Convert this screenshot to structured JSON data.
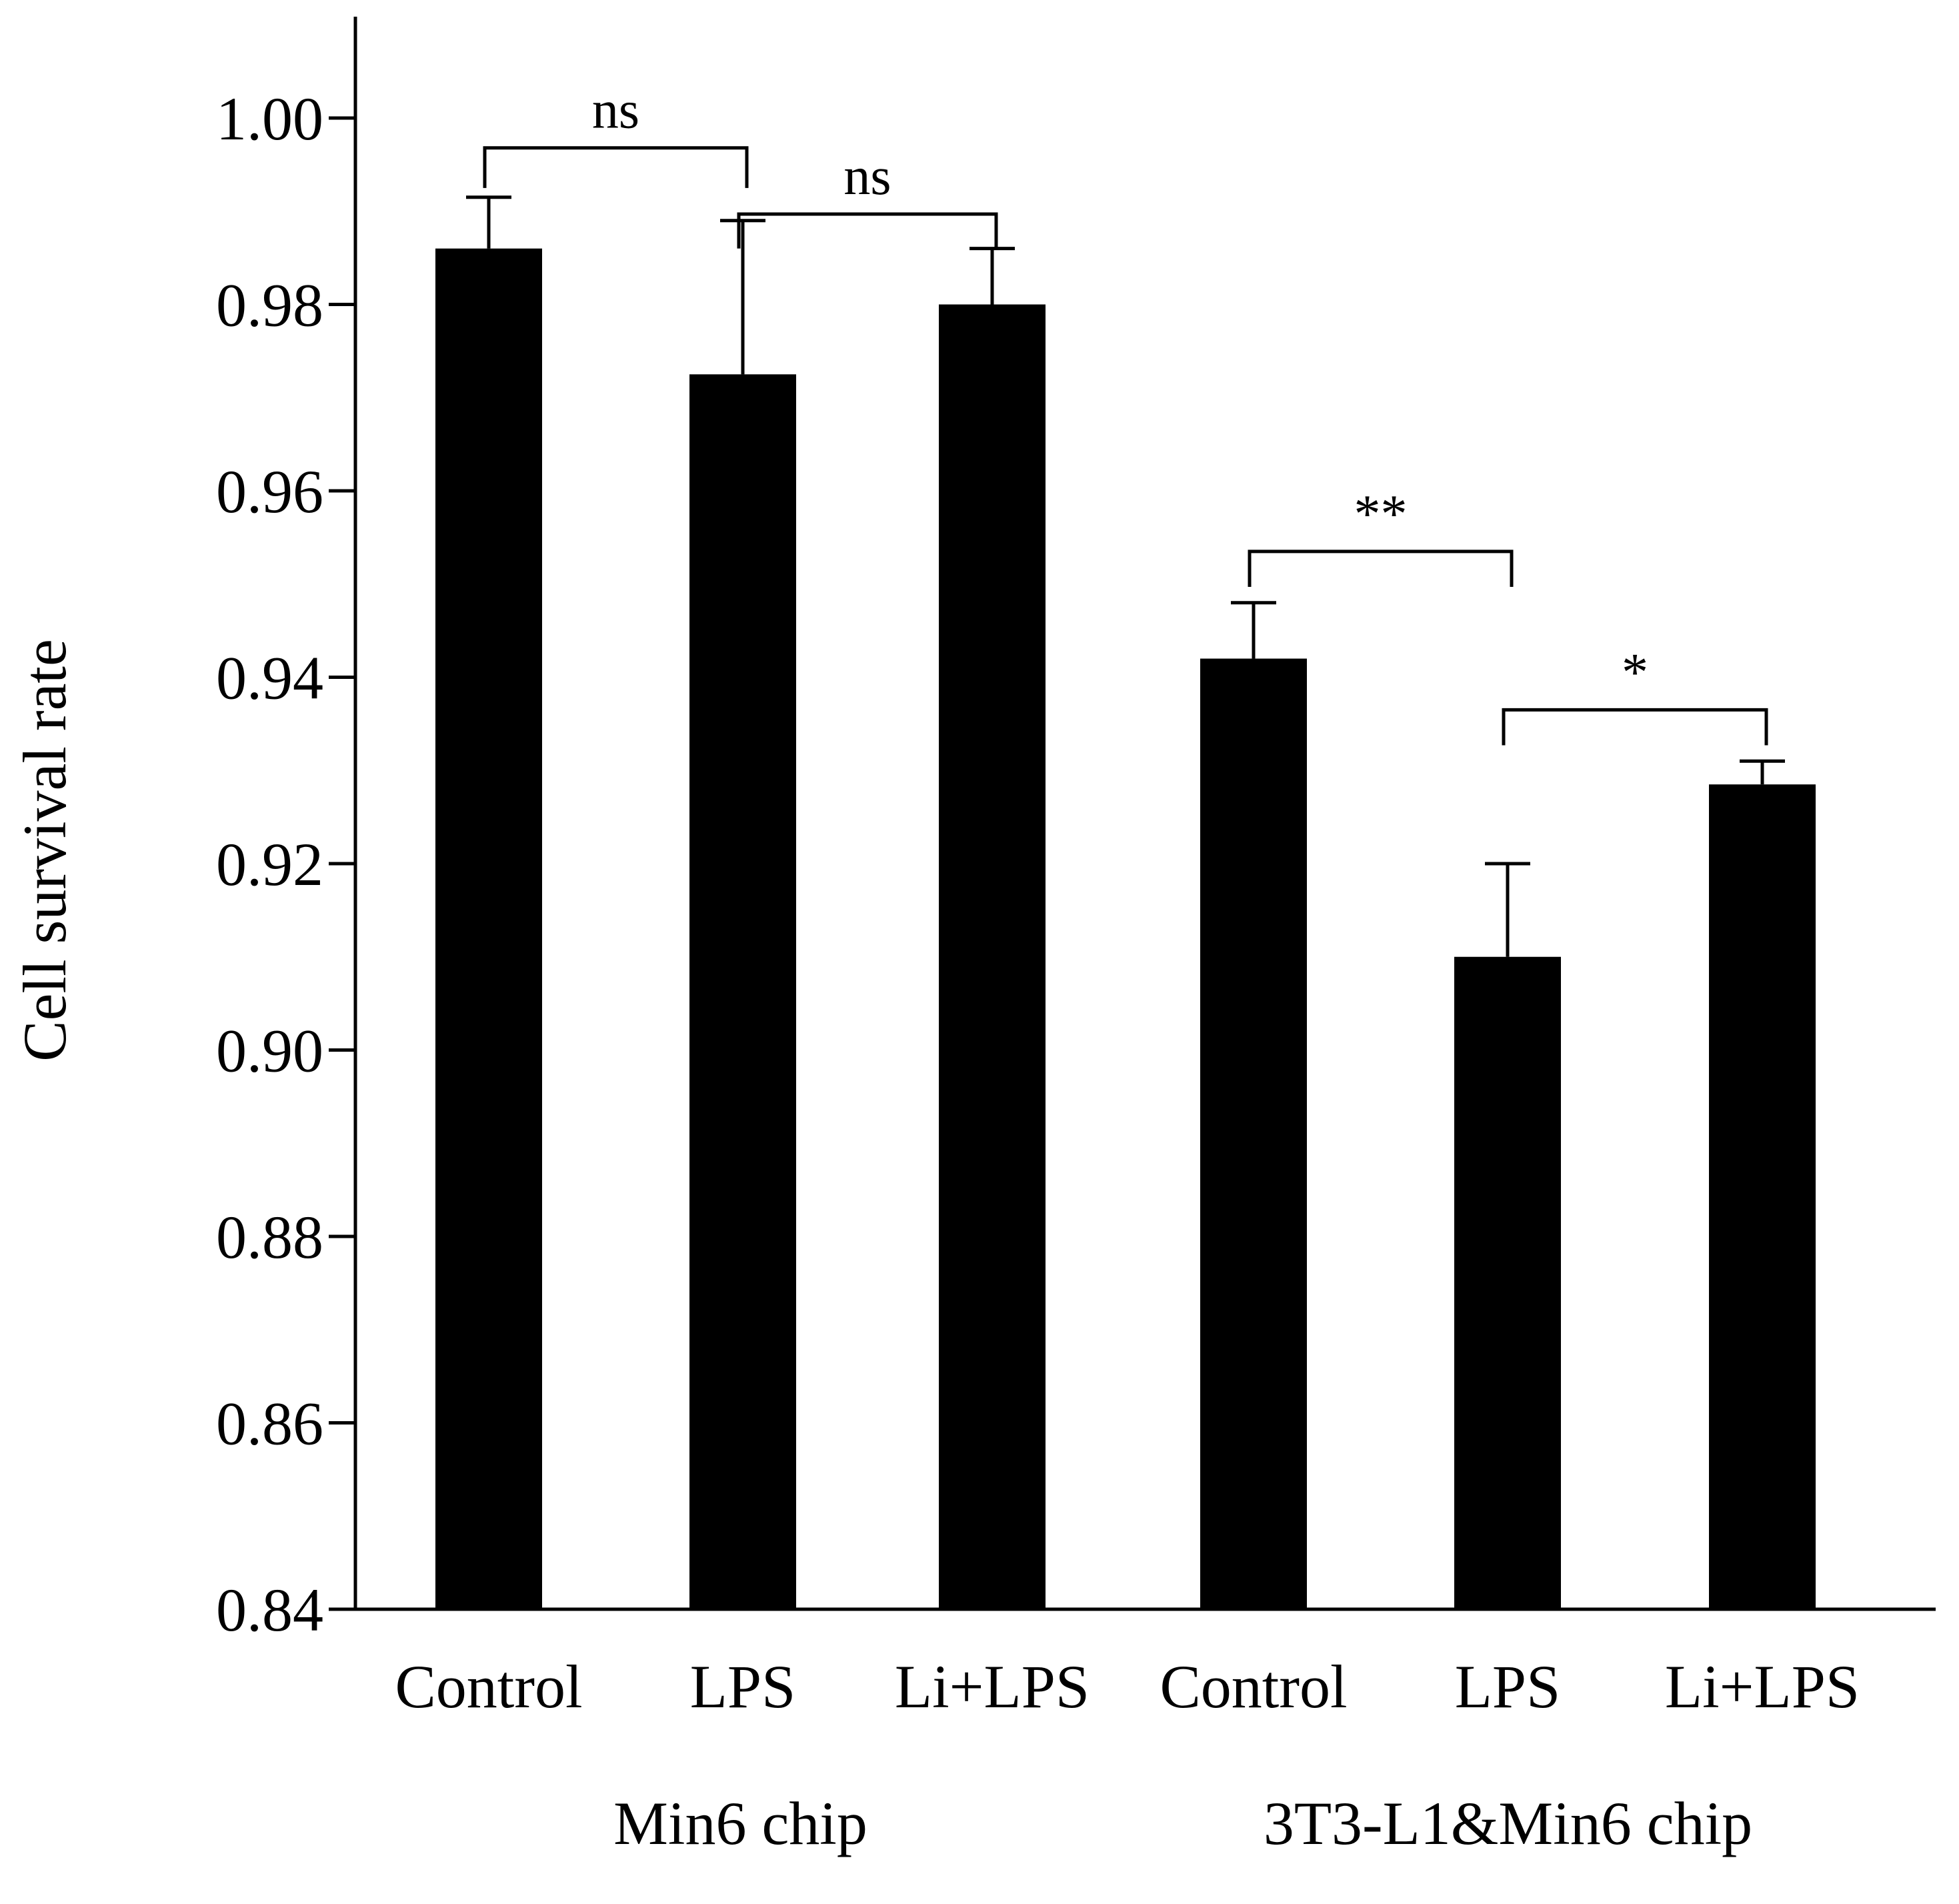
{
  "chart_data": {
    "type": "bar",
    "title": "",
    "xlabel": "",
    "ylabel": "Cell survival rate",
    "ylim": [
      0.84,
      1.01
    ],
    "yticks": [
      "0.84",
      "0.86",
      "0.88",
      "0.90",
      "0.92",
      "0.94",
      "0.96",
      "0.98",
      "1.00"
    ],
    "categories": [
      "Control",
      "LPS",
      "Li+LPS",
      "Control",
      "LPS",
      "Li+LPS"
    ],
    "groups": [
      {
        "label": "Min6 chip",
        "members": [
          0,
          1,
          2
        ]
      },
      {
        "label": "3T3-L1&Min6 chip",
        "members": [
          3,
          4,
          5
        ]
      }
    ],
    "values": [
      0.986,
      0.9725,
      0.98,
      0.942,
      0.91,
      0.9285
    ],
    "errors": [
      0.0055,
      0.0165,
      0.006,
      0.006,
      0.01,
      0.0025
    ],
    "significance": [
      {
        "from": 0,
        "to": 1,
        "label": "ns",
        "y": 0.9968,
        "drop": 0.0043
      },
      {
        "from": 1,
        "to": 2,
        "label": "ns",
        "y": 0.9897,
        "drop": 0.0037
      },
      {
        "from": 3,
        "to": 4,
        "label": "**",
        "y": 0.9535,
        "drop": 0.0038
      },
      {
        "from": 4,
        "to": 5,
        "label": "*",
        "y": 0.9365,
        "drop": 0.0038
      }
    ],
    "bar_color": "#000000",
    "grid": false,
    "legend": "none"
  }
}
